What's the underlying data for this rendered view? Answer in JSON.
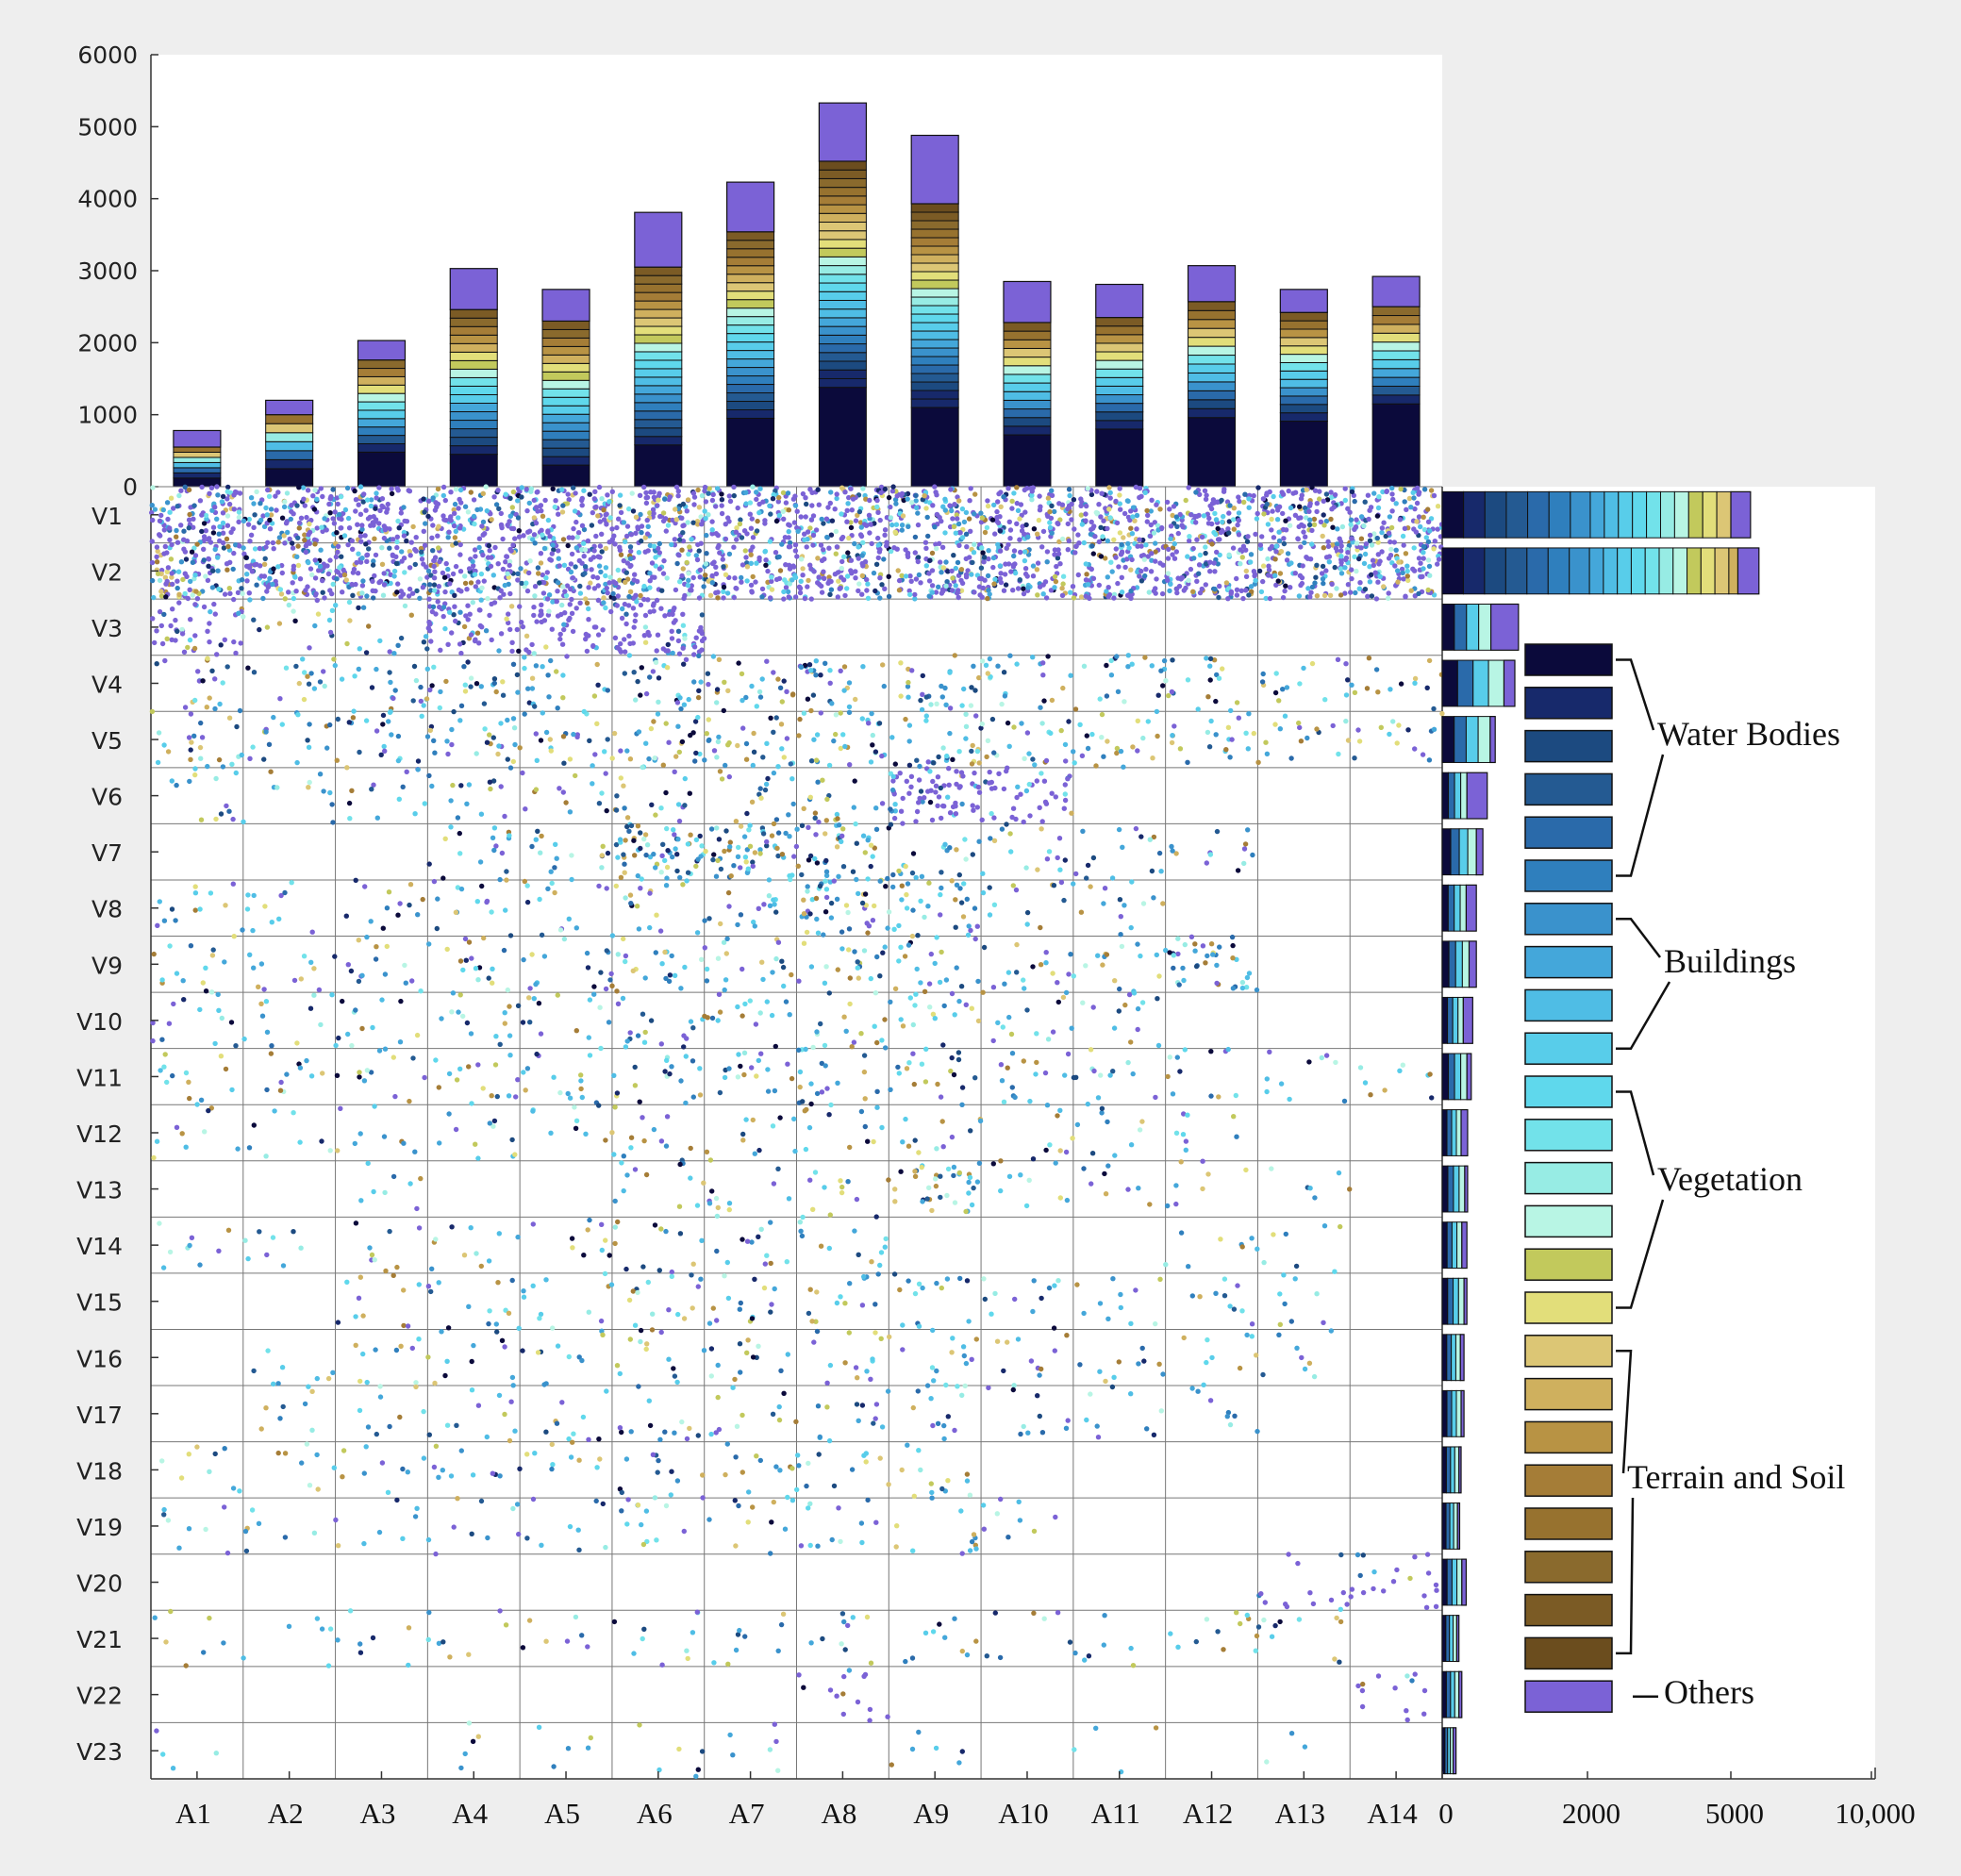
{
  "chart_data": {
    "type": "stacked-bar-marginal-scatter",
    "top_bar": {
      "categories": [
        "A1",
        "A2",
        "A3",
        "A4",
        "A5",
        "A6",
        "A7",
        "A8",
        "A9",
        "A10",
        "A11",
        "A12",
        "A13",
        "A14"
      ],
      "totals": [
        780,
        1200,
        2030,
        3030,
        2740,
        3810,
        4230,
        5330,
        4880,
        2850,
        2810,
        3070,
        2740,
        2920
      ],
      "others_values": [
        230,
        200,
        270,
        570,
        440,
        760,
        690,
        810,
        950,
        570,
        460,
        500,
        320,
        420
      ],
      "water_base_values": [
        120,
        250,
        480,
        450,
        300,
        580,
        950,
        1380,
        1100,
        720,
        800,
        960,
        910,
        1150
      ],
      "ylim": [
        0,
        6000
      ],
      "yticks": [
        "0",
        "1000",
        "2000",
        "3000",
        "4000",
        "5000",
        "6000"
      ]
    },
    "right_bar": {
      "categories": [
        "V1",
        "V2",
        "V3",
        "V4",
        "V5",
        "V6",
        "V7",
        "V8",
        "V9",
        "V10",
        "V11",
        "V12",
        "V13",
        "V14",
        "V15",
        "V16",
        "V17",
        "V18",
        "V19",
        "V20",
        "V21",
        "V22",
        "V23"
      ],
      "totals": [
        5700,
        6000,
        1050,
        1000,
        730,
        620,
        560,
        470,
        470,
        420,
        400,
        350,
        350,
        340,
        340,
        300,
        300,
        260,
        240,
        330,
        230,
        270,
        190
      ],
      "others_values": [
        700,
        750,
        380,
        150,
        70,
        280,
        90,
        140,
        100,
        130,
        60,
        90,
        40,
        70,
        40,
        50,
        40,
        30,
        30,
        60,
        30,
        40,
        40
      ],
      "xticks": [
        "0",
        "2000",
        "5000",
        "10,000"
      ],
      "xtick_values": [
        0,
        2000,
        5000,
        10000
      ]
    },
    "matrix": {
      "rows": [
        "V1",
        "V2",
        "V3",
        "V4",
        "V5",
        "V6",
        "V7",
        "V8",
        "V9",
        "V10",
        "V11",
        "V12",
        "V13",
        "V14",
        "V15",
        "V16",
        "V17",
        "V18",
        "V19",
        "V20",
        "V21",
        "V22",
        "V23"
      ],
      "cols": [
        "A1",
        "A2",
        "A3",
        "A4",
        "A5",
        "A6",
        "A7",
        "A8",
        "A9",
        "A10",
        "A11",
        "A12",
        "A13",
        "A14"
      ]
    },
    "legend": {
      "groups": [
        {
          "label": "Water Bodies",
          "first_swatch": 0,
          "last_swatch": 5
        },
        {
          "label": "Buildings",
          "first_swatch": 6,
          "last_swatch": 9
        },
        {
          "label": "Vegetation",
          "first_swatch": 10,
          "last_swatch": 15
        },
        {
          "label": "Terrain and Soil",
          "first_swatch": 16,
          "last_swatch": 23
        },
        {
          "label": "Others",
          "first_swatch": 24,
          "last_swatch": 24
        }
      ],
      "swatch_colors": [
        "#0b0a3b",
        "#17296b",
        "#1c4a80",
        "#245a92",
        "#2a6aaa",
        "#2f7fbd",
        "#3a92cc",
        "#44a7da",
        "#4fbde5",
        "#58cdea",
        "#5fd8ec",
        "#72e2ea",
        "#97ece4",
        "#b8f5e4",
        "#c2c95c",
        "#e2de7a",
        "#dcc675",
        "#cfb05e",
        "#b89344",
        "#a57d37",
        "#97722f",
        "#8a6a2d",
        "#7b5b25",
        "#6b4d1e",
        "#7b62d6"
      ]
    }
  }
}
